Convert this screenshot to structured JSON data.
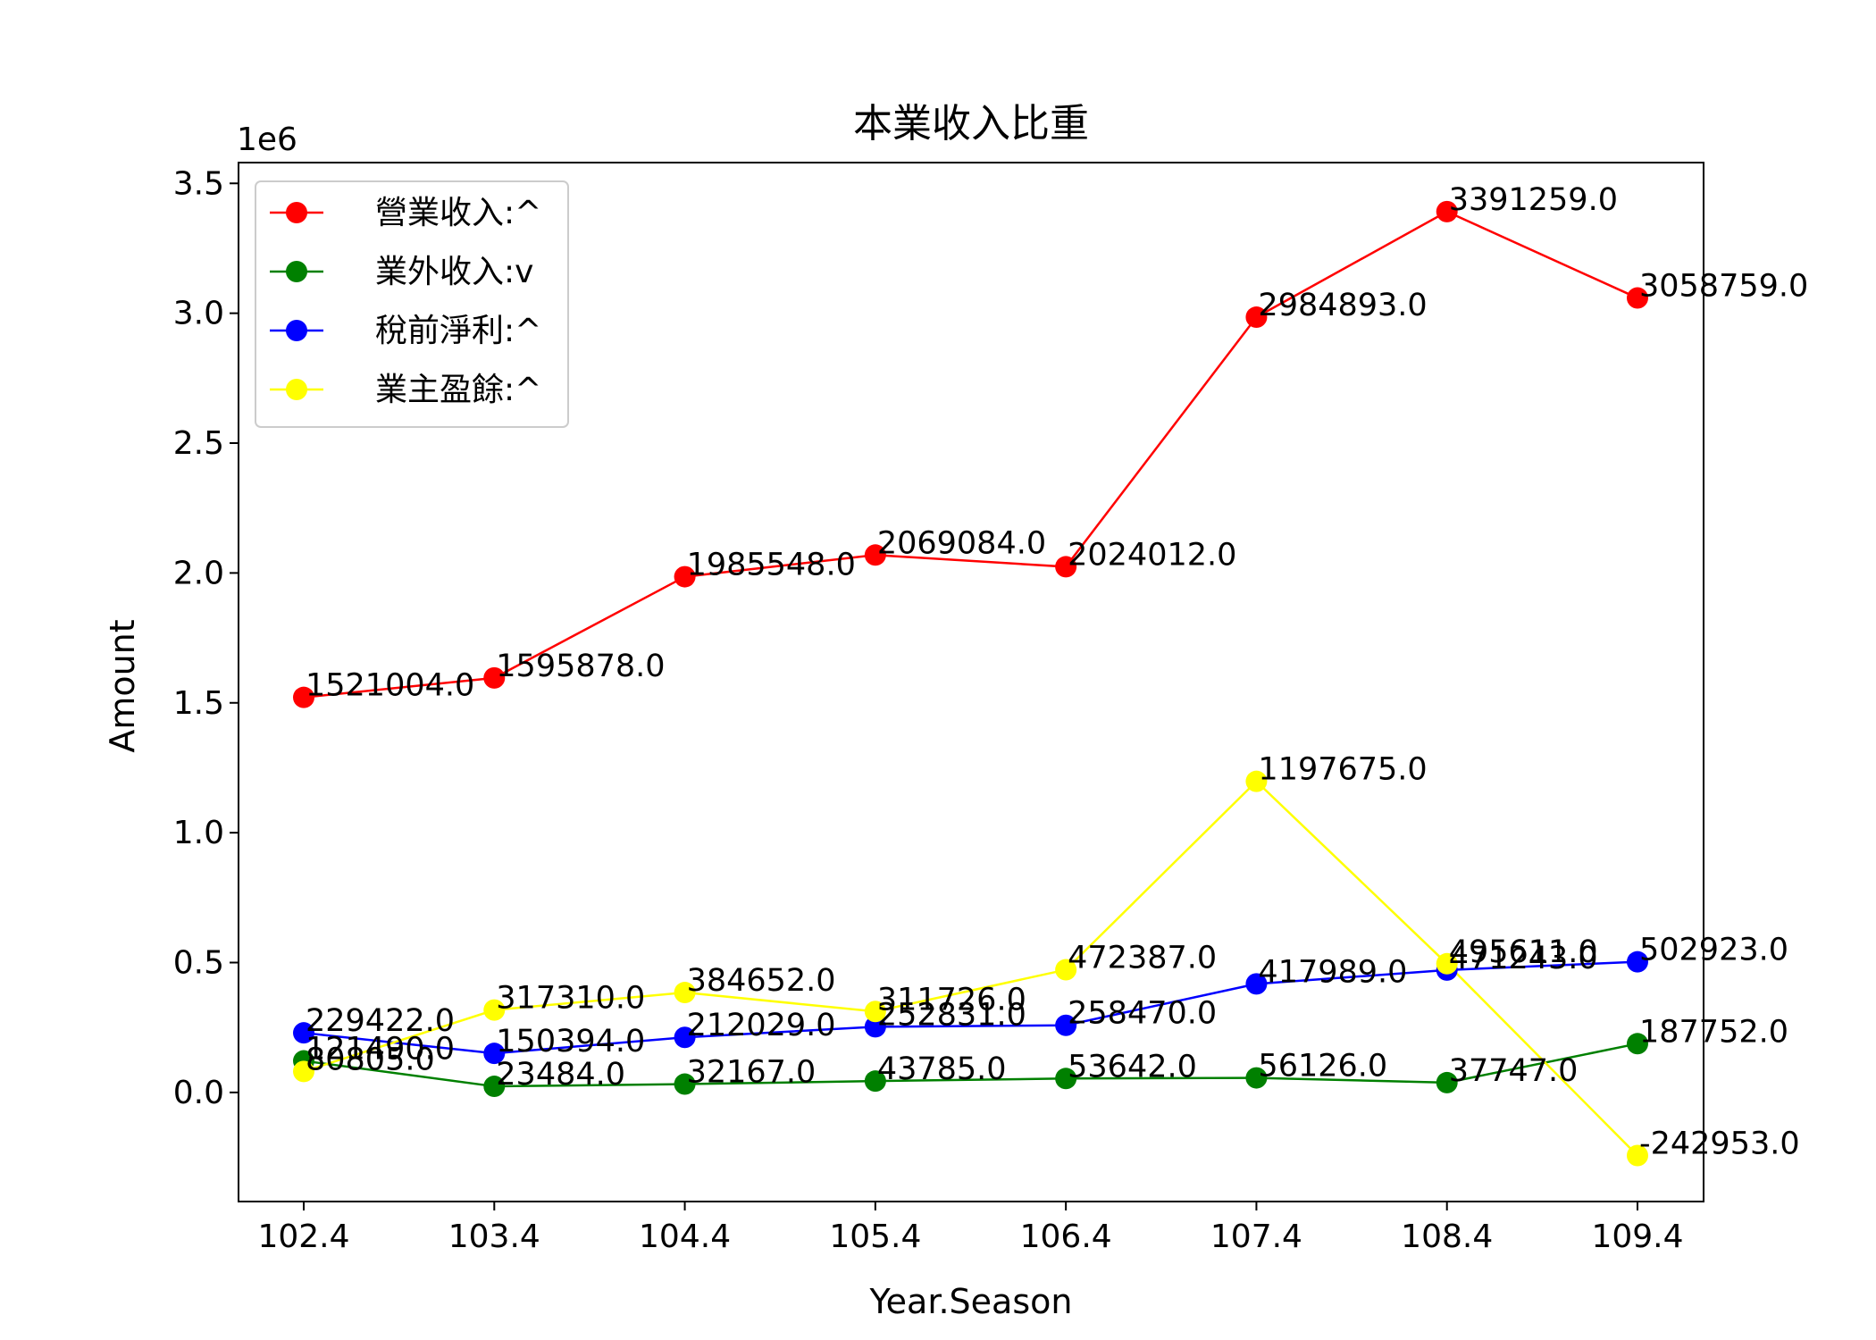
{
  "chart_data": {
    "type": "line",
    "title": "本業收入比重",
    "xlabel": "Year.Season",
    "ylabel": "Amount",
    "y_offset_label": "1e6",
    "categories": [
      "102.4",
      "103.4",
      "104.4",
      "105.4",
      "106.4",
      "107.4",
      "108.4",
      "109.4"
    ],
    "ylim": [
      -420000,
      3580000
    ],
    "yticks": [
      0,
      500000,
      1000000,
      1500000,
      2000000,
      2500000,
      3000000,
      3500000
    ],
    "ytick_labels": [
      "0.0",
      "0.5",
      "1.0",
      "1.5",
      "2.0",
      "2.5",
      "3.0",
      "3.5"
    ],
    "grid": false,
    "legend_position": "top-left",
    "series": [
      {
        "name": "營業收入:^",
        "color": "#ff0000",
        "values": [
          1521004,
          1595878,
          1985548,
          2069084,
          2024012,
          2984893,
          3391259,
          3058759
        ],
        "labels": [
          "1521004.0",
          "1595878.0",
          "1985548.0",
          "2069084.0",
          "2024012.0",
          "2984893.0",
          "3391259.0",
          "3058759.0"
        ]
      },
      {
        "name": "業外收入:v",
        "color": "#008000",
        "values": [
          121490,
          23484,
          32167,
          43785,
          53642,
          56126,
          37747,
          187752
        ],
        "labels": [
          "121490.0",
          "23484.0",
          "32167.0",
          "43785.0",
          "53642.0",
          "56126.0",
          "37747.0",
          "187752.0"
        ]
      },
      {
        "name": "稅前淨利:^",
        "color": "#0000ff",
        "values": [
          229422,
          150394,
          212029,
          252831,
          258470,
          417989,
          471243,
          502923
        ],
        "labels": [
          "229422.0",
          "150394.0",
          "212029.0",
          "252831.0",
          "258470.0",
          "417989.0",
          "471243.0",
          "502923.0"
        ]
      },
      {
        "name": "業主盈餘:^",
        "color": "#ffff00",
        "values": [
          80805,
          317310,
          384652,
          311726,
          472387,
          1197675,
          495611,
          -242953
        ],
        "labels": [
          "80805.0",
          "317310.0",
          "384652.0",
          "311726.0",
          "472387.0",
          "1197675.0",
          "495611.0",
          "-242953.0"
        ]
      }
    ]
  }
}
